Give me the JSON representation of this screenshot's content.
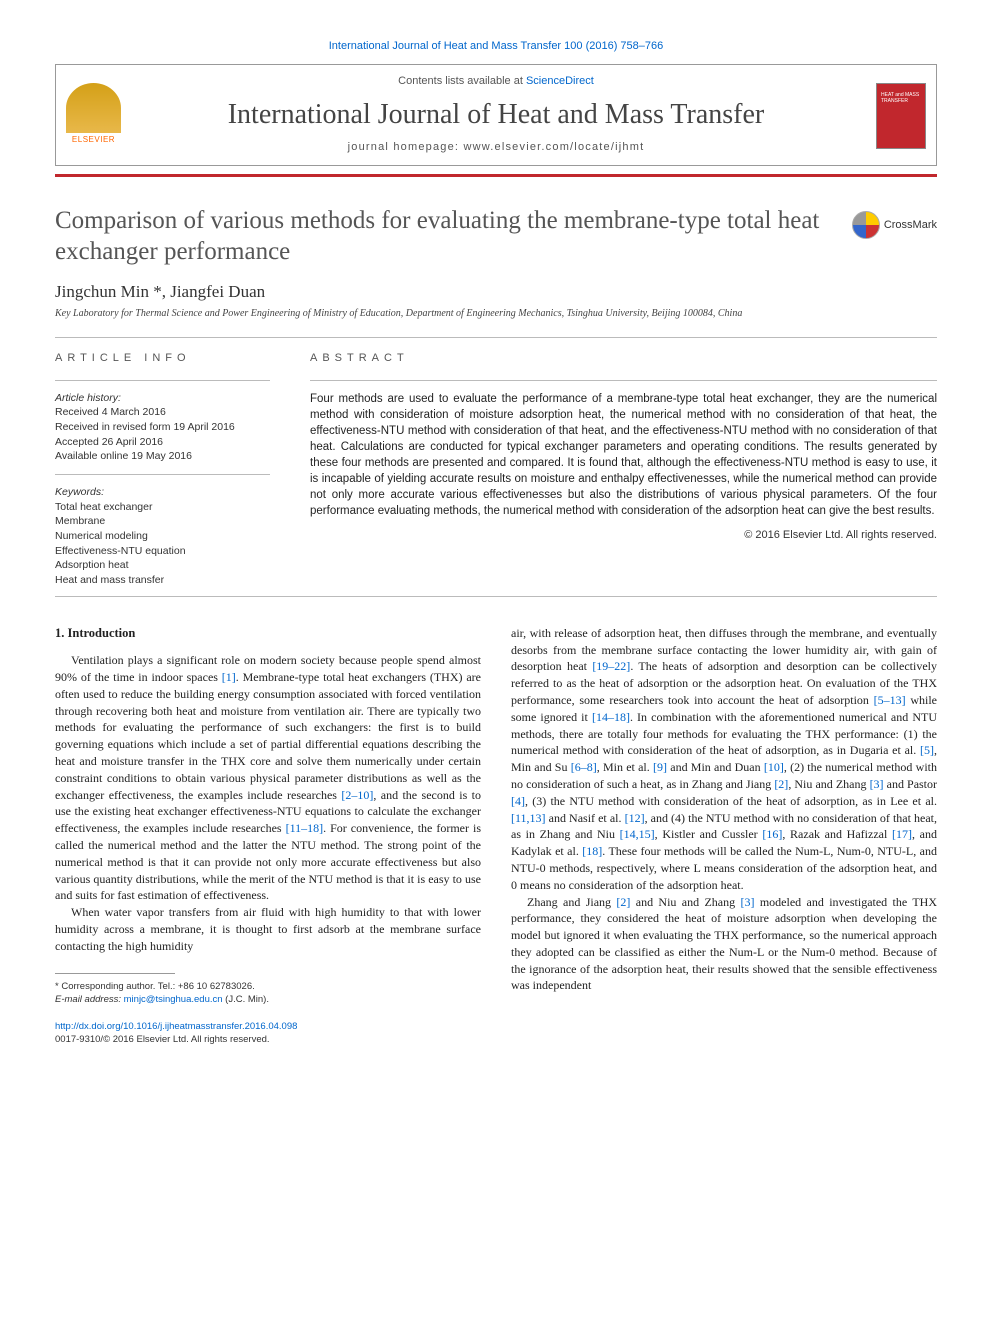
{
  "citation": "International Journal of Heat and Mass Transfer 100 (2016) 758–766",
  "header": {
    "contents_line_prefix": "Contents lists available at ",
    "contents_line_link": "ScienceDirect",
    "journal_name": "International Journal of Heat and Mass Transfer",
    "homepage_prefix": "journal homepage: ",
    "homepage_url": "www.elsevier.com/locate/ijhmt",
    "elsevier_label": "ELSEVIER",
    "cover_text": "HEAT and MASS TRANSFER"
  },
  "title": "Comparison of various methods for evaluating the membrane-type total heat exchanger performance",
  "crossmark_label": "CrossMark",
  "authors": "Jingchun Min *, Jiangfei Duan",
  "affiliation": "Key Laboratory for Thermal Science and Power Engineering of Ministry of Education, Department of Engineering Mechanics, Tsinghua University, Beijing 100084, China",
  "article_info": {
    "label": "ARTICLE INFO",
    "history_label": "Article history:",
    "received": "Received 4 March 2016",
    "revised": "Received in revised form 19 April 2016",
    "accepted": "Accepted 26 April 2016",
    "online": "Available online 19 May 2016",
    "keywords_label": "Keywords:",
    "keywords": [
      "Total heat exchanger",
      "Membrane",
      "Numerical modeling",
      "Effectiveness-NTU equation",
      "Adsorption heat",
      "Heat and mass transfer"
    ]
  },
  "abstract": {
    "label": "ABSTRACT",
    "text": "Four methods are used to evaluate the performance of a membrane-type total heat exchanger, they are the numerical method with consideration of moisture adsorption heat, the numerical method with no consideration of that heat, the effectiveness-NTU method with consideration of that heat, and the effectiveness-NTU method with no consideration of that heat. Calculations are conducted for typical exchanger parameters and operating conditions. The results generated by these four methods are presented and compared. It is found that, although the effectiveness-NTU method is easy to use, it is incapable of yielding accurate results on moisture and enthalpy effectivenesses, while the numerical method can provide not only more accurate various effectivenesses but also the distributions of various physical parameters. Of the four performance evaluating methods, the numerical method with consideration of the adsorption heat can give the best results.",
    "copyright": "© 2016 Elsevier Ltd. All rights reserved."
  },
  "body": {
    "heading": "1. Introduction",
    "left_paras": [
      "Ventilation plays a significant role on modern society because people spend almost 90% of the time in indoor spaces [1]. Membrane-type total heat exchangers (THX) are often used to reduce the building energy consumption associated with forced ventilation through recovering both heat and moisture from ventilation air. There are typically two methods for evaluating the performance of such exchangers: the first is to build governing equations which include a set of partial differential equations describing the heat and moisture transfer in the THX core and solve them numerically under certain constraint conditions to obtain various physical parameter distributions as well as the exchanger effectiveness, the examples include researches [2–10], and the second is to use the existing heat exchanger effectiveness-NTU equations to calculate the exchanger effectiveness, the examples include researches [11–18]. For convenience, the former is called the numerical method and the latter the NTU method. The strong point of the numerical method is that it can provide not only more accurate effectiveness but also various quantity distributions, while the merit of the NTU method is that it is easy to use and suits for fast estimation of effectiveness.",
      "When water vapor transfers from air fluid with high humidity to that with lower humidity across a membrane, it is thought to first adsorb at the membrane surface contacting the high humidity"
    ],
    "right_paras": [
      "air, with release of adsorption heat, then diffuses through the membrane, and eventually desorbs from the membrane surface contacting the lower humidity air, with gain of desorption heat [19–22]. The heats of adsorption and desorption can be collectively referred to as the heat of adsorption or the adsorption heat. On evaluation of the THX performance, some researchers took into account the heat of adsorption [5–13] while some ignored it [14–18]. In combination with the aforementioned numerical and NTU methods, there are totally four methods for evaluating the THX performance: (1) the numerical method with consideration of the heat of adsorption, as in Dugaria et al. [5], Min and Su [6–8], Min et al. [9] and Min and Duan [10], (2) the numerical method with no consideration of such a heat, as in Zhang and Jiang [2], Niu and Zhang [3] and Pastor [4], (3) the NTU method with consideration of the heat of adsorption, as in Lee et al. [11,13] and Nasif et al. [12], and (4) the NTU method with no consideration of that heat, as in Zhang and Niu [14,15], Kistler and Cussler [16], Razak and Hafizzal [17], and Kadylak et al. [18]. These four methods will be called the Num-L, Num-0, NTU-L, and NTU-0 methods, respectively, where L means consideration of the adsorption heat, and 0 means no consideration of the adsorption heat.",
      "Zhang and Jiang [2] and Niu and Zhang [3] modeled and investigated the THX performance, they considered the heat of moisture adsorption when developing the model but ignored it when evaluating the THX performance, so the numerical approach they adopted can be classified as either the Num-L or the Num-0 method. Because of the ignorance of the adsorption heat, their results showed that the sensible effectiveness was independent"
    ]
  },
  "footnote": {
    "corresponding": "* Corresponding author. Tel.: +86 10 62783026.",
    "email_label": "E-mail address: ",
    "email": "minjc@tsinghua.edu.cn",
    "email_suffix": " (J.C. Min)."
  },
  "doi": {
    "url": "http://dx.doi.org/10.1016/j.ijheatmasstransfer.2016.04.098",
    "issn": "0017-9310/© 2016 Elsevier Ltd. All rights reserved."
  },
  "refs": {
    "r1": "[1]",
    "r2_10": "[2–10]",
    "r11_18": "[11–18]",
    "r19_22": "[19–22]",
    "r5_13": "[5–13]",
    "r14_18": "[14–18]",
    "r5": "[5]",
    "r6_8": "[6–8]",
    "r9": "[9]",
    "r10": "[10]",
    "r2": "[2]",
    "r3": "[3]",
    "r4": "[4]",
    "r11_13": "[11,13]",
    "r12": "[12]",
    "r14_15": "[14,15]",
    "r16": "[16]",
    "r17": "[17]",
    "r18": "[18]"
  }
}
